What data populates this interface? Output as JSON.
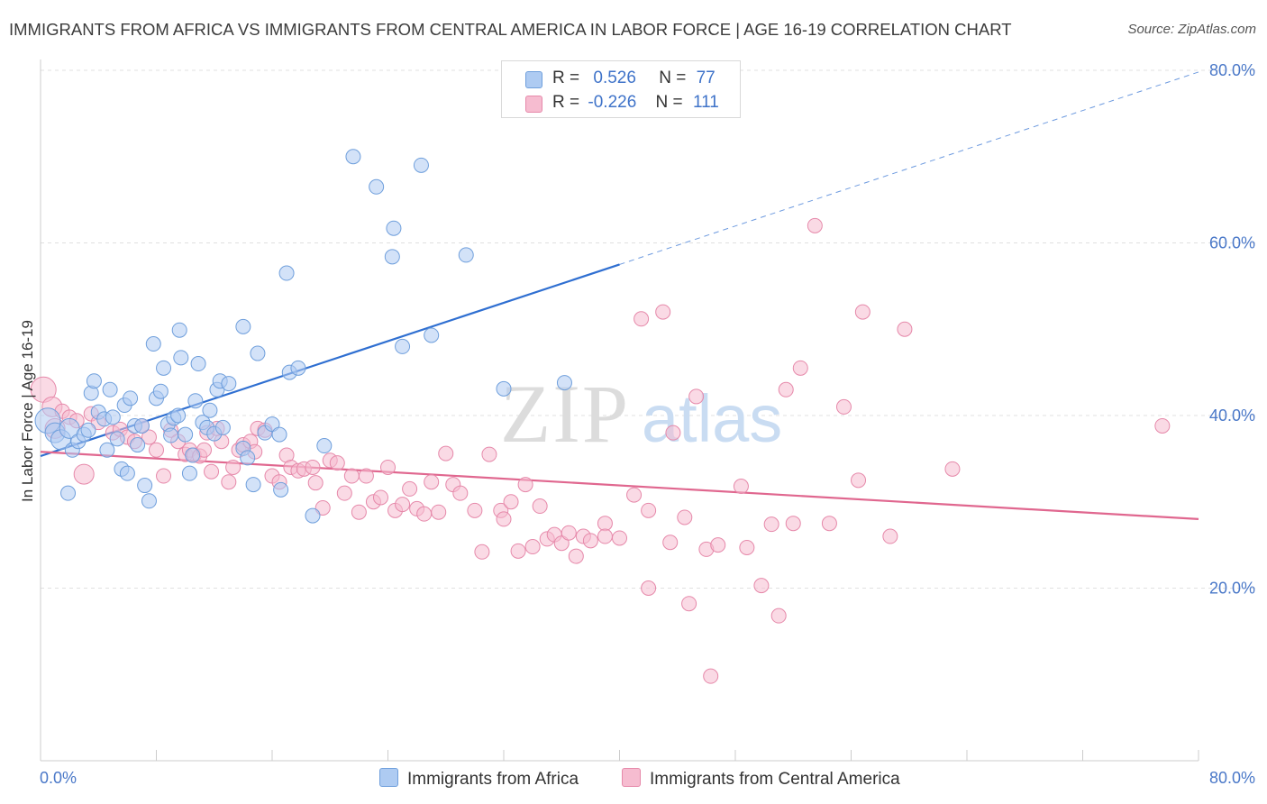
{
  "title": "IMMIGRANTS FROM AFRICA VS IMMIGRANTS FROM CENTRAL AMERICA IN LABOR FORCE | AGE 16-19 CORRELATION CHART",
  "source": "Source: ZipAtlas.com",
  "legend": {
    "rows": [
      {
        "r_label": "R =",
        "r_value": "0.526",
        "n_label": "N =",
        "n_value": "77"
      },
      {
        "r_label": "R =",
        "r_value": "-0.226",
        "n_label": "N =",
        "n_value": "111"
      }
    ]
  },
  "colors": {
    "africa_fill": "#aecbf2",
    "africa_stroke": "#6f9fdc",
    "africa_line": "#2f6fd1",
    "central_fill": "#f6bcd0",
    "central_stroke": "#e689aa",
    "central_line": "#e0678f",
    "grid": "#e0e0e0",
    "tick_text": "#4a78c8"
  },
  "watermark": {
    "zip": "ZIP",
    "atlas": "atlas"
  },
  "chart_data": {
    "type": "scatter",
    "title": "IMMIGRANTS FROM AFRICA VS IMMIGRANTS FROM CENTRAL AMERICA IN LABOR FORCE | AGE 16-19 CORRELATION CHART",
    "xlabel": "",
    "ylabel": "In Labor Force | Age 16-19",
    "xlim": [
      0,
      0.8
    ],
    "ylim": [
      0,
      0.8
    ],
    "x_tick_labels": [
      "0.0%",
      "80.0%"
    ],
    "y_ticks": [
      0.2,
      0.4,
      0.6,
      0.8
    ],
    "y_tick_labels": [
      "20.0%",
      "40.0%",
      "60.0%",
      "80.0%"
    ],
    "grid": true,
    "legend_position": "top-center",
    "series": [
      {
        "name": "Immigrants from Africa",
        "r": 0.526,
        "n": 77,
        "trend": {
          "x0": 0.0,
          "y0": 0.353,
          "x1": 0.4,
          "y1": 0.575,
          "dashed_to_x": 0.8,
          "dashed_to_y": 0.798
        },
        "points": [
          [
            0.005,
            0.394,
            "L"
          ],
          [
            0.01,
            0.38,
            "M"
          ],
          [
            0.014,
            0.372,
            "M"
          ],
          [
            0.02,
            0.385,
            "M"
          ],
          [
            0.022,
            0.36,
            "S"
          ],
          [
            0.026,
            0.37,
            "S"
          ],
          [
            0.019,
            0.31,
            "S"
          ],
          [
            0.03,
            0.378,
            "S"
          ],
          [
            0.033,
            0.383,
            "S"
          ],
          [
            0.035,
            0.426,
            "S"
          ],
          [
            0.037,
            0.44,
            "S"
          ],
          [
            0.04,
            0.404,
            "S"
          ],
          [
            0.044,
            0.396,
            "S"
          ],
          [
            0.046,
            0.36,
            "S"
          ],
          [
            0.048,
            0.43,
            "S"
          ],
          [
            0.05,
            0.398,
            "S"
          ],
          [
            0.053,
            0.373,
            "S"
          ],
          [
            0.056,
            0.338,
            "S"
          ],
          [
            0.058,
            0.412,
            "S"
          ],
          [
            0.06,
            0.333,
            "S"
          ],
          [
            0.062,
            0.42,
            "S"
          ],
          [
            0.065,
            0.388,
            "S"
          ],
          [
            0.067,
            0.366,
            "S"
          ],
          [
            0.07,
            0.388,
            "S"
          ],
          [
            0.072,
            0.319,
            "S"
          ],
          [
            0.075,
            0.301,
            "S"
          ],
          [
            0.078,
            0.483,
            "S"
          ],
          [
            0.08,
            0.42,
            "S"
          ],
          [
            0.083,
            0.428,
            "S"
          ],
          [
            0.085,
            0.455,
            "S"
          ],
          [
            0.088,
            0.39,
            "S"
          ],
          [
            0.09,
            0.377,
            "S"
          ],
          [
            0.092,
            0.397,
            "S"
          ],
          [
            0.095,
            0.4,
            "S"
          ],
          [
            0.096,
            0.499,
            "S"
          ],
          [
            0.097,
            0.467,
            "S"
          ],
          [
            0.1,
            0.378,
            "S"
          ],
          [
            0.103,
            0.333,
            "S"
          ],
          [
            0.105,
            0.354,
            "S"
          ],
          [
            0.107,
            0.417,
            "S"
          ],
          [
            0.109,
            0.46,
            "S"
          ],
          [
            0.112,
            0.392,
            "S"
          ],
          [
            0.115,
            0.386,
            "S"
          ],
          [
            0.117,
            0.406,
            "S"
          ],
          [
            0.12,
            0.379,
            "S"
          ],
          [
            0.122,
            0.43,
            "S"
          ],
          [
            0.124,
            0.44,
            "S"
          ],
          [
            0.126,
            0.386,
            "S"
          ],
          [
            0.13,
            0.437,
            "S"
          ],
          [
            0.14,
            0.503,
            "S"
          ],
          [
            0.15,
            0.472,
            "S"
          ],
          [
            0.14,
            0.362,
            "S"
          ],
          [
            0.143,
            0.351,
            "S"
          ],
          [
            0.147,
            0.32,
            "S"
          ],
          [
            0.155,
            0.38,
            "S"
          ],
          [
            0.16,
            0.39,
            "S"
          ],
          [
            0.165,
            0.378,
            "S"
          ],
          [
            0.166,
            0.314,
            "S"
          ],
          [
            0.17,
            0.565,
            "S"
          ],
          [
            0.172,
            0.45,
            "S"
          ],
          [
            0.178,
            0.455,
            "S"
          ],
          [
            0.188,
            0.284,
            "S"
          ],
          [
            0.196,
            0.365,
            "S"
          ],
          [
            0.216,
            0.7,
            "S"
          ],
          [
            0.232,
            0.665,
            "S"
          ],
          [
            0.244,
            0.617,
            "S"
          ],
          [
            0.243,
            0.584,
            "S"
          ],
          [
            0.25,
            0.48,
            "S"
          ],
          [
            0.263,
            0.69,
            "S"
          ],
          [
            0.27,
            0.493,
            "S"
          ],
          [
            0.294,
            0.586,
            "S"
          ],
          [
            0.32,
            0.431,
            "S"
          ],
          [
            0.362,
            0.438,
            "S"
          ]
        ]
      },
      {
        "name": "Immigrants from Central America",
        "r": -0.226,
        "n": 111,
        "trend": {
          "x0": 0.0,
          "y0": 0.358,
          "x1": 0.8,
          "y1": 0.28
        },
        "points": [
          [
            0.002,
            0.43,
            "L"
          ],
          [
            0.008,
            0.41,
            "M"
          ],
          [
            0.01,
            0.385,
            "M"
          ],
          [
            0.015,
            0.405,
            "S"
          ],
          [
            0.02,
            0.398,
            "S"
          ],
          [
            0.025,
            0.394,
            "S"
          ],
          [
            0.03,
            0.332,
            "M"
          ],
          [
            0.035,
            0.402,
            "S"
          ],
          [
            0.04,
            0.392,
            "S"
          ],
          [
            0.05,
            0.38,
            "S"
          ],
          [
            0.055,
            0.384,
            "S"
          ],
          [
            0.06,
            0.375,
            "S"
          ],
          [
            0.065,
            0.37,
            "S"
          ],
          [
            0.07,
            0.388,
            "S"
          ],
          [
            0.075,
            0.375,
            "S"
          ],
          [
            0.08,
            0.36,
            "S"
          ],
          [
            0.085,
            0.33,
            "S"
          ],
          [
            0.09,
            0.383,
            "S"
          ],
          [
            0.095,
            0.37,
            "S"
          ],
          [
            0.1,
            0.355,
            "S"
          ],
          [
            0.103,
            0.36,
            "S"
          ],
          [
            0.106,
            0.354,
            "S"
          ],
          [
            0.11,
            0.353,
            "S"
          ],
          [
            0.113,
            0.36,
            "S"
          ],
          [
            0.115,
            0.38,
            "S"
          ],
          [
            0.118,
            0.335,
            "S"
          ],
          [
            0.122,
            0.385,
            "S"
          ],
          [
            0.125,
            0.37,
            "S"
          ],
          [
            0.13,
            0.323,
            "S"
          ],
          [
            0.133,
            0.34,
            "S"
          ],
          [
            0.137,
            0.36,
            "S"
          ],
          [
            0.14,
            0.366,
            "S"
          ],
          [
            0.145,
            0.37,
            "S"
          ],
          [
            0.148,
            0.358,
            "S"
          ],
          [
            0.15,
            0.385,
            "S"
          ],
          [
            0.155,
            0.383,
            "S"
          ],
          [
            0.16,
            0.33,
            "S"
          ],
          [
            0.165,
            0.323,
            "S"
          ],
          [
            0.17,
            0.354,
            "S"
          ],
          [
            0.173,
            0.34,
            "S"
          ],
          [
            0.178,
            0.336,
            "S"
          ],
          [
            0.182,
            0.338,
            "S"
          ],
          [
            0.188,
            0.34,
            "S"
          ],
          [
            0.19,
            0.322,
            "S"
          ],
          [
            0.195,
            0.293,
            "S"
          ],
          [
            0.2,
            0.348,
            "S"
          ],
          [
            0.205,
            0.345,
            "S"
          ],
          [
            0.21,
            0.31,
            "S"
          ],
          [
            0.215,
            0.33,
            "S"
          ],
          [
            0.22,
            0.288,
            "S"
          ],
          [
            0.225,
            0.33,
            "S"
          ],
          [
            0.23,
            0.3,
            "S"
          ],
          [
            0.235,
            0.305,
            "S"
          ],
          [
            0.24,
            0.34,
            "S"
          ],
          [
            0.245,
            0.29,
            "S"
          ],
          [
            0.25,
            0.297,
            "S"
          ],
          [
            0.255,
            0.315,
            "S"
          ],
          [
            0.26,
            0.292,
            "S"
          ],
          [
            0.265,
            0.286,
            "S"
          ],
          [
            0.27,
            0.323,
            "S"
          ],
          [
            0.275,
            0.288,
            "S"
          ],
          [
            0.28,
            0.356,
            "S"
          ],
          [
            0.285,
            0.32,
            "S"
          ],
          [
            0.29,
            0.31,
            "S"
          ],
          [
            0.3,
            0.29,
            "S"
          ],
          [
            0.305,
            0.242,
            "S"
          ],
          [
            0.31,
            0.355,
            "S"
          ],
          [
            0.318,
            0.29,
            "S"
          ],
          [
            0.32,
            0.28,
            "S"
          ],
          [
            0.325,
            0.3,
            "S"
          ],
          [
            0.33,
            0.243,
            "S"
          ],
          [
            0.335,
            0.32,
            "S"
          ],
          [
            0.34,
            0.248,
            "S"
          ],
          [
            0.345,
            0.295,
            "S"
          ],
          [
            0.35,
            0.257,
            "S"
          ],
          [
            0.355,
            0.262,
            "S"
          ],
          [
            0.36,
            0.252,
            "S"
          ],
          [
            0.365,
            0.264,
            "S"
          ],
          [
            0.37,
            0.237,
            "S"
          ],
          [
            0.375,
            0.26,
            "S"
          ],
          [
            0.38,
            0.255,
            "S"
          ],
          [
            0.39,
            0.275,
            "S"
          ],
          [
            0.39,
            0.26,
            "S"
          ],
          [
            0.4,
            0.258,
            "S"
          ],
          [
            0.41,
            0.308,
            "S"
          ],
          [
            0.415,
            0.512,
            "S"
          ],
          [
            0.42,
            0.29,
            "S"
          ],
          [
            0.42,
            0.2,
            "S"
          ],
          [
            0.43,
            0.52,
            "S"
          ],
          [
            0.435,
            0.253,
            "S"
          ],
          [
            0.437,
            0.38,
            "S"
          ],
          [
            0.445,
            0.282,
            "S"
          ],
          [
            0.448,
            0.182,
            "S"
          ],
          [
            0.453,
            0.422,
            "S"
          ],
          [
            0.46,
            0.245,
            "S"
          ],
          [
            0.463,
            0.098,
            "S"
          ],
          [
            0.468,
            0.25,
            "S"
          ],
          [
            0.484,
            0.318,
            "S"
          ],
          [
            0.488,
            0.247,
            "S"
          ],
          [
            0.498,
            0.203,
            "S"
          ],
          [
            0.505,
            0.274,
            "S"
          ],
          [
            0.51,
            0.168,
            "S"
          ],
          [
            0.515,
            0.43,
            "S"
          ],
          [
            0.52,
            0.275,
            "S"
          ],
          [
            0.525,
            0.455,
            "S"
          ],
          [
            0.535,
            0.62,
            "S"
          ],
          [
            0.545,
            0.275,
            "S"
          ],
          [
            0.555,
            0.41,
            "S"
          ],
          [
            0.565,
            0.325,
            "S"
          ],
          [
            0.568,
            0.52,
            "S"
          ],
          [
            0.587,
            0.26,
            "S"
          ],
          [
            0.597,
            0.5,
            "S"
          ],
          [
            0.63,
            0.338,
            "S"
          ],
          [
            0.775,
            0.388,
            "S"
          ]
        ]
      }
    ]
  },
  "bottom_legend": {
    "africa": "Immigrants from Africa",
    "central": "Immigrants from Central America"
  }
}
